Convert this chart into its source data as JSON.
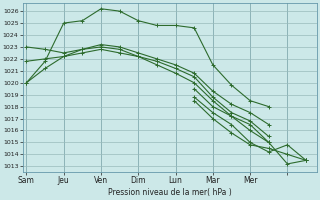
{
  "xlabel": "Pression niveau de la mer( hPa )",
  "bg_color": "#cce8e8",
  "grid_color": "#99bbbb",
  "line_color": "#2d6b2d",
  "series": [
    {
      "x": [
        0,
        0.5,
        1,
        1.5,
        2,
        2.5,
        3,
        3.5,
        4,
        4.5,
        5,
        5.5,
        6,
        6.5
      ],
      "y": [
        1020,
        1021.8,
        1025,
        1025.2,
        1026.2,
        1026.0,
        1025.2,
        1024.8,
        1024.8,
        1024.6,
        1021.5,
        1019.8,
        1018.5,
        1018.0
      ]
    },
    {
      "x": [
        0,
        0.5,
        1,
        1.5,
        2,
        2.5,
        3,
        3.5,
        4,
        4.5,
        5,
        5.5,
        6,
        6.5
      ],
      "y": [
        1023,
        1022.8,
        1022.5,
        1022.8,
        1023.2,
        1023.0,
        1022.5,
        1022.0,
        1021.5,
        1020.8,
        1019.3,
        1018.2,
        1017.5,
        1016.5
      ]
    },
    {
      "x": [
        0,
        0.5,
        1,
        1.5,
        2,
        2.5,
        3,
        3.5,
        4,
        4.5,
        5,
        5.5,
        6,
        6.5
      ],
      "y": [
        1021.8,
        1022.0,
        1022.2,
        1022.5,
        1022.8,
        1022.5,
        1022.2,
        1021.8,
        1021.2,
        1020.5,
        1018.8,
        1017.5,
        1016.8,
        1015.5
      ]
    },
    {
      "x": [
        0,
        0.5,
        1,
        1.5,
        2,
        2.5,
        3,
        3.5,
        4,
        4.5,
        5,
        5.5,
        6,
        6.5
      ],
      "y": [
        1020.0,
        1021.2,
        1022.2,
        1022.8,
        1023.0,
        1022.8,
        1022.2,
        1021.5,
        1020.8,
        1020.0,
        1018.5,
        1017.2,
        1016.0,
        1015.0
      ]
    },
    {
      "x": [
        4.5,
        5,
        5.5,
        6,
        6.5,
        7,
        7.5
      ],
      "y": [
        1019.5,
        1018.0,
        1017.2,
        1016.5,
        1015.0,
        1013.2,
        1013.5
      ]
    },
    {
      "x": [
        4.5,
        5,
        5.5,
        6,
        6.5,
        7,
        7.5
      ],
      "y": [
        1018.8,
        1017.5,
        1016.5,
        1015.0,
        1014.2,
        1014.8,
        1013.5
      ]
    },
    {
      "x": [
        4.5,
        5,
        5.5,
        6,
        6.5,
        7,
        7.5
      ],
      "y": [
        1018.5,
        1017.0,
        1015.8,
        1014.8,
        1014.5,
        1014.0,
        1013.5
      ]
    }
  ],
  "ytick_vals": [
    1013,
    1014,
    1015,
    1016,
    1017,
    1018,
    1019,
    1020,
    1021,
    1022,
    1023,
    1024,
    1025,
    1026
  ],
  "xtick_positions": [
    0,
    1,
    2,
    3,
    4,
    5,
    6,
    7
  ],
  "xtick_labels": [
    "Sam",
    "Jeu",
    "Ven",
    "Dim",
    "Lun",
    "Mar",
    "Mer",
    ""
  ],
  "xlim": [
    -0.1,
    7.8
  ],
  "ylim": [
    1012.5,
    1026.7
  ]
}
